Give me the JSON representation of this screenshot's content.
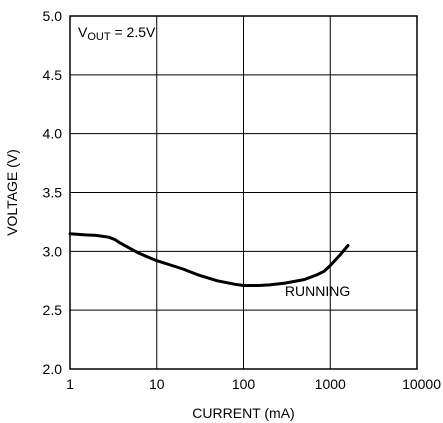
{
  "chart_data": {
    "type": "line",
    "x_scale": "log",
    "xlim": [
      1,
      10000
    ],
    "ylim": [
      2.0,
      5.0
    ],
    "xlabel": "CURRENT (mA)",
    "ylabel": "VOLTAGE (V)",
    "grid": true,
    "x_ticks": [
      "1",
      "10",
      "100",
      "1000",
      "10000"
    ],
    "y_ticks": [
      "2.0",
      "2.5",
      "3.0",
      "3.5",
      "4.0",
      "4.5",
      "5.0"
    ],
    "annotation_main": "V",
    "annotation_sub": "OUT",
    "annotation_rest": " = 2.5V",
    "series": [
      {
        "name": "RUNNING",
        "x": [
          1,
          1.5,
          2,
          2.8,
          3.3,
          3.8,
          4.5,
          6,
          8,
          10,
          15,
          20,
          30,
          50,
          80,
          100,
          150,
          200,
          300,
          500,
          700,
          850,
          1000,
          1300,
          1600
        ],
        "y": [
          3.15,
          3.14,
          3.135,
          3.12,
          3.1,
          3.07,
          3.04,
          2.99,
          2.95,
          2.92,
          2.88,
          2.85,
          2.8,
          2.75,
          2.72,
          2.71,
          2.71,
          2.715,
          2.73,
          2.76,
          2.8,
          2.83,
          2.88,
          2.97,
          3.05
        ]
      }
    ]
  }
}
